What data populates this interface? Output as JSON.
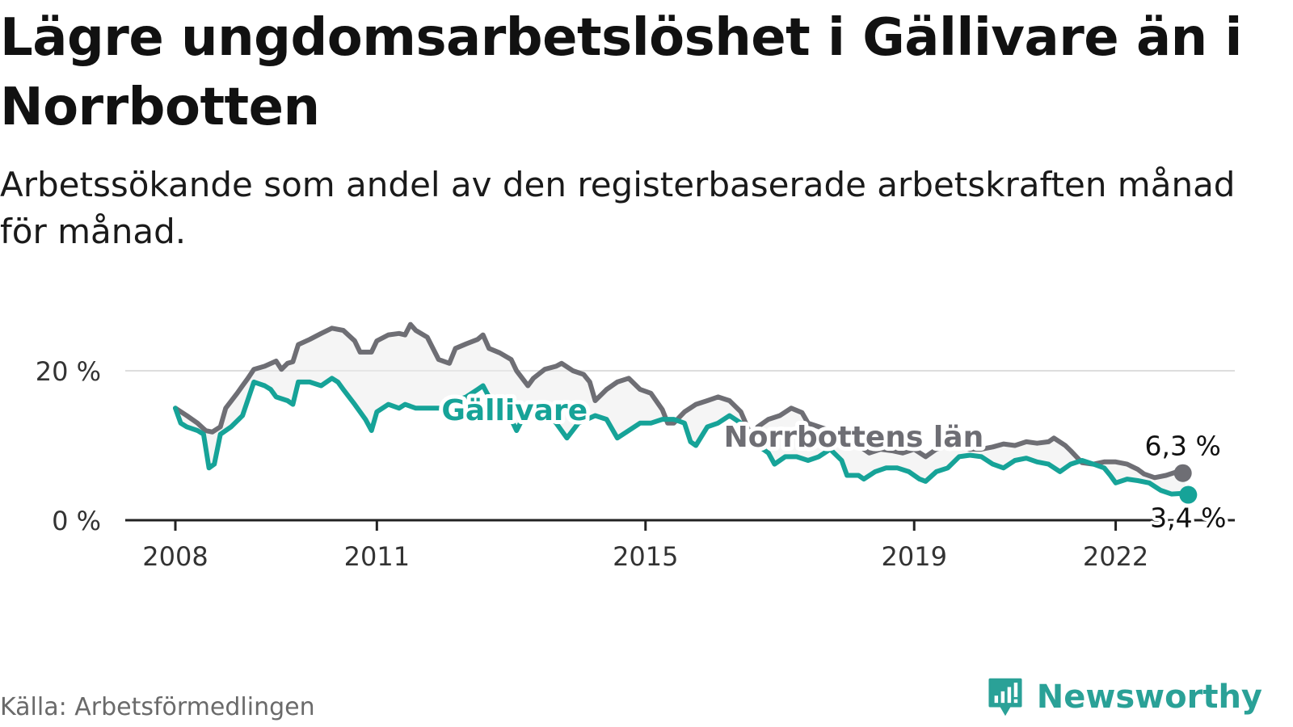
{
  "header": {
    "title": "Lägre ungdomsarbetslöshet i Gällivare än i Norrbotten",
    "subtitle": "Arbetssökande som andel av den registerbaserade arbetskraften månad för månad."
  },
  "footer": {
    "source": "Källa: Arbetsförmedlingen",
    "brand": "Newsworthy"
  },
  "colors": {
    "gallivare": "#16a398",
    "norrbotten": "#6e6e74",
    "grid": "#dddddd",
    "axis": "#222222",
    "fill": "#ececec"
  },
  "chart_data": {
    "type": "line",
    "title": "Lägre ungdomsarbetslöshet i Gällivare än i Norrbotten",
    "xlabel": "",
    "ylabel": "",
    "xlim": [
      2008.0,
      2023.1
    ],
    "ylim": [
      0,
      26
    ],
    "x_ticks": [
      2008,
      2011,
      2015,
      2019,
      2022
    ],
    "x_tick_labels": [
      "2008",
      "2011",
      "2015",
      "2019",
      "2022"
    ],
    "y_ticks": [
      0,
      20
    ],
    "y_tick_labels": [
      "0 %",
      "20 %"
    ],
    "series": [
      {
        "name": "Norrbottens län",
        "label": "Norrbottens län",
        "color": "#6e6e74",
        "end_label": "6,3 %",
        "points": [
          [
            2008.0,
            15.0
          ],
          [
            2008.17,
            14.0
          ],
          [
            2008.33,
            13.0
          ],
          [
            2008.45,
            12.0
          ],
          [
            2008.55,
            11.8
          ],
          [
            2008.67,
            12.5
          ],
          [
            2008.75,
            15.0
          ],
          [
            2008.92,
            17.0
          ],
          [
            2009.0,
            18.0
          ],
          [
            2009.08,
            19.0
          ],
          [
            2009.17,
            20.2
          ],
          [
            2009.33,
            20.6
          ],
          [
            2009.5,
            21.3
          ],
          [
            2009.58,
            20.2
          ],
          [
            2009.67,
            21.0
          ],
          [
            2009.75,
            21.2
          ],
          [
            2009.83,
            23.5
          ],
          [
            2010.0,
            24.2
          ],
          [
            2010.17,
            25.0
          ],
          [
            2010.33,
            25.7
          ],
          [
            2010.5,
            25.4
          ],
          [
            2010.67,
            24.0
          ],
          [
            2010.75,
            22.5
          ],
          [
            2010.92,
            22.5
          ],
          [
            2011.0,
            24.0
          ],
          [
            2011.17,
            24.8
          ],
          [
            2011.33,
            25.0
          ],
          [
            2011.42,
            24.8
          ],
          [
            2011.5,
            26.2
          ],
          [
            2011.58,
            25.4
          ],
          [
            2011.75,
            24.5
          ],
          [
            2011.92,
            21.5
          ],
          [
            2012.08,
            21.0
          ],
          [
            2012.17,
            23.0
          ],
          [
            2012.33,
            23.6
          ],
          [
            2012.5,
            24.2
          ],
          [
            2012.58,
            24.8
          ],
          [
            2012.67,
            23.0
          ],
          [
            2012.83,
            22.4
          ],
          [
            2013.0,
            21.5
          ],
          [
            2013.08,
            20.0
          ],
          [
            2013.25,
            18.0
          ],
          [
            2013.33,
            19.0
          ],
          [
            2013.5,
            20.2
          ],
          [
            2013.67,
            20.6
          ],
          [
            2013.75,
            21.0
          ],
          [
            2013.92,
            20.0
          ],
          [
            2014.08,
            19.5
          ],
          [
            2014.17,
            18.5
          ],
          [
            2014.25,
            16.0
          ],
          [
            2014.42,
            17.5
          ],
          [
            2014.58,
            18.5
          ],
          [
            2014.75,
            19.0
          ],
          [
            2014.92,
            17.5
          ],
          [
            2015.08,
            17.0
          ],
          [
            2015.25,
            14.8
          ],
          [
            2015.33,
            13.0
          ],
          [
            2015.42,
            13.0
          ],
          [
            2015.58,
            14.5
          ],
          [
            2015.75,
            15.5
          ],
          [
            2015.92,
            16.0
          ],
          [
            2016.08,
            16.5
          ],
          [
            2016.25,
            16.0
          ],
          [
            2016.42,
            14.5
          ],
          [
            2016.5,
            12.8
          ],
          [
            2016.58,
            11.0
          ],
          [
            2016.67,
            12.5
          ],
          [
            2016.83,
            13.5
          ],
          [
            2017.0,
            14.0
          ],
          [
            2017.17,
            15.0
          ],
          [
            2017.33,
            14.4
          ],
          [
            2017.42,
            13.0
          ],
          [
            2017.75,
            12.0
          ],
          [
            2018.0,
            10.5
          ],
          [
            2018.17,
            10.0
          ],
          [
            2018.33,
            9.0
          ],
          [
            2018.5,
            9.5
          ],
          [
            2018.67,
            9.3
          ],
          [
            2018.83,
            9.0
          ],
          [
            2019.0,
            9.5
          ],
          [
            2019.17,
            8.5
          ],
          [
            2019.33,
            9.5
          ],
          [
            2019.5,
            10.0
          ],
          [
            2019.67,
            10.0
          ],
          [
            2019.83,
            9.5
          ],
          [
            2020.0,
            9.5
          ],
          [
            2020.17,
            9.8
          ],
          [
            2020.33,
            10.2
          ],
          [
            2020.5,
            10.0
          ],
          [
            2020.67,
            10.5
          ],
          [
            2020.83,
            10.3
          ],
          [
            2021.0,
            10.5
          ],
          [
            2021.08,
            11.0
          ],
          [
            2021.25,
            10.0
          ],
          [
            2021.33,
            9.3
          ],
          [
            2021.5,
            7.7
          ],
          [
            2021.67,
            7.5
          ],
          [
            2021.83,
            7.8
          ],
          [
            2022.0,
            7.8
          ],
          [
            2022.17,
            7.5
          ],
          [
            2022.33,
            6.8
          ],
          [
            2022.42,
            6.2
          ],
          [
            2022.58,
            5.7
          ],
          [
            2022.75,
            6.0
          ],
          [
            2022.92,
            6.5
          ],
          [
            2023.0,
            6.3
          ]
        ]
      },
      {
        "name": "Gällivare",
        "label": "Gällivare",
        "color": "#16a398",
        "end_label": "3,4 %",
        "points": [
          [
            2008.0,
            15.0
          ],
          [
            2008.08,
            13.0
          ],
          [
            2008.17,
            12.5
          ],
          [
            2008.33,
            12.0
          ],
          [
            2008.42,
            11.5
          ],
          [
            2008.5,
            7.0
          ],
          [
            2008.58,
            7.5
          ],
          [
            2008.67,
            11.5
          ],
          [
            2008.83,
            12.5
          ],
          [
            2009.0,
            14.0
          ],
          [
            2009.17,
            18.5
          ],
          [
            2009.33,
            18.0
          ],
          [
            2009.42,
            17.5
          ],
          [
            2009.5,
            16.5
          ],
          [
            2009.67,
            16.0
          ],
          [
            2009.75,
            15.5
          ],
          [
            2009.83,
            18.5
          ],
          [
            2010.0,
            18.5
          ],
          [
            2010.17,
            18.0
          ],
          [
            2010.33,
            19.0
          ],
          [
            2010.42,
            18.5
          ],
          [
            2010.5,
            17.5
          ],
          [
            2010.67,
            15.5
          ],
          [
            2010.83,
            13.5
          ],
          [
            2010.92,
            12.0
          ],
          [
            2011.0,
            14.5
          ],
          [
            2011.17,
            15.5
          ],
          [
            2011.33,
            15.0
          ],
          [
            2011.42,
            15.5
          ],
          [
            2011.58,
            15.0
          ],
          [
            2011.75,
            15.0
          ],
          [
            2011.92,
            15.0
          ],
          [
            2012.08,
            15.0
          ],
          [
            2012.17,
            16.0
          ],
          [
            2012.33,
            16.5
          ],
          [
            2012.5,
            17.5
          ],
          [
            2012.58,
            18.0
          ],
          [
            2012.67,
            16.5
          ],
          [
            2013.0,
            13.5
          ],
          [
            2013.08,
            12.0
          ],
          [
            2013.25,
            15.0
          ],
          [
            2013.5,
            14.5
          ],
          [
            2013.67,
            13.0
          ],
          [
            2013.83,
            11.0
          ],
          [
            2014.0,
            13.0
          ],
          [
            2014.25,
            14.0
          ],
          [
            2014.42,
            13.5
          ],
          [
            2014.58,
            11.0
          ],
          [
            2014.75,
            12.0
          ],
          [
            2014.92,
            13.0
          ],
          [
            2015.08,
            13.0
          ],
          [
            2015.25,
            13.5
          ],
          [
            2015.42,
            13.5
          ],
          [
            2015.58,
            13.0
          ],
          [
            2015.67,
            10.5
          ],
          [
            2015.75,
            10.0
          ],
          [
            2015.92,
            12.5
          ],
          [
            2016.08,
            13.0
          ],
          [
            2016.25,
            14.0
          ],
          [
            2016.42,
            13.0
          ],
          [
            2016.58,
            11.5
          ],
          [
            2016.75,
            9.5
          ],
          [
            2016.83,
            9.0
          ],
          [
            2016.92,
            7.5
          ],
          [
            2017.08,
            8.5
          ],
          [
            2017.25,
            8.5
          ],
          [
            2017.42,
            8.0
          ],
          [
            2017.58,
            8.5
          ],
          [
            2017.75,
            9.5
          ],
          [
            2017.92,
            8.0
          ],
          [
            2018.0,
            6.0
          ],
          [
            2018.17,
            6.0
          ],
          [
            2018.25,
            5.5
          ],
          [
            2018.42,
            6.5
          ],
          [
            2018.58,
            7.0
          ],
          [
            2018.75,
            7.0
          ],
          [
            2018.92,
            6.5
          ],
          [
            2019.08,
            5.5
          ],
          [
            2019.17,
            5.2
          ],
          [
            2019.33,
            6.5
          ],
          [
            2019.5,
            7.0
          ],
          [
            2019.67,
            8.5
          ],
          [
            2019.83,
            8.7
          ],
          [
            2020.0,
            8.5
          ],
          [
            2020.17,
            7.5
          ],
          [
            2020.33,
            7.0
          ],
          [
            2020.5,
            8.0
          ],
          [
            2020.67,
            8.3
          ],
          [
            2020.83,
            7.8
          ],
          [
            2021.0,
            7.5
          ],
          [
            2021.17,
            6.5
          ],
          [
            2021.33,
            7.5
          ],
          [
            2021.5,
            8.0
          ],
          [
            2021.67,
            7.5
          ],
          [
            2021.83,
            7.0
          ],
          [
            2021.92,
            6.0
          ],
          [
            2022.0,
            5.0
          ],
          [
            2022.17,
            5.5
          ],
          [
            2022.33,
            5.3
          ],
          [
            2022.5,
            5.0
          ],
          [
            2022.67,
            4.0
          ],
          [
            2022.83,
            3.5
          ],
          [
            2023.0,
            3.6
          ],
          [
            2023.08,
            3.4
          ]
        ]
      }
    ]
  }
}
